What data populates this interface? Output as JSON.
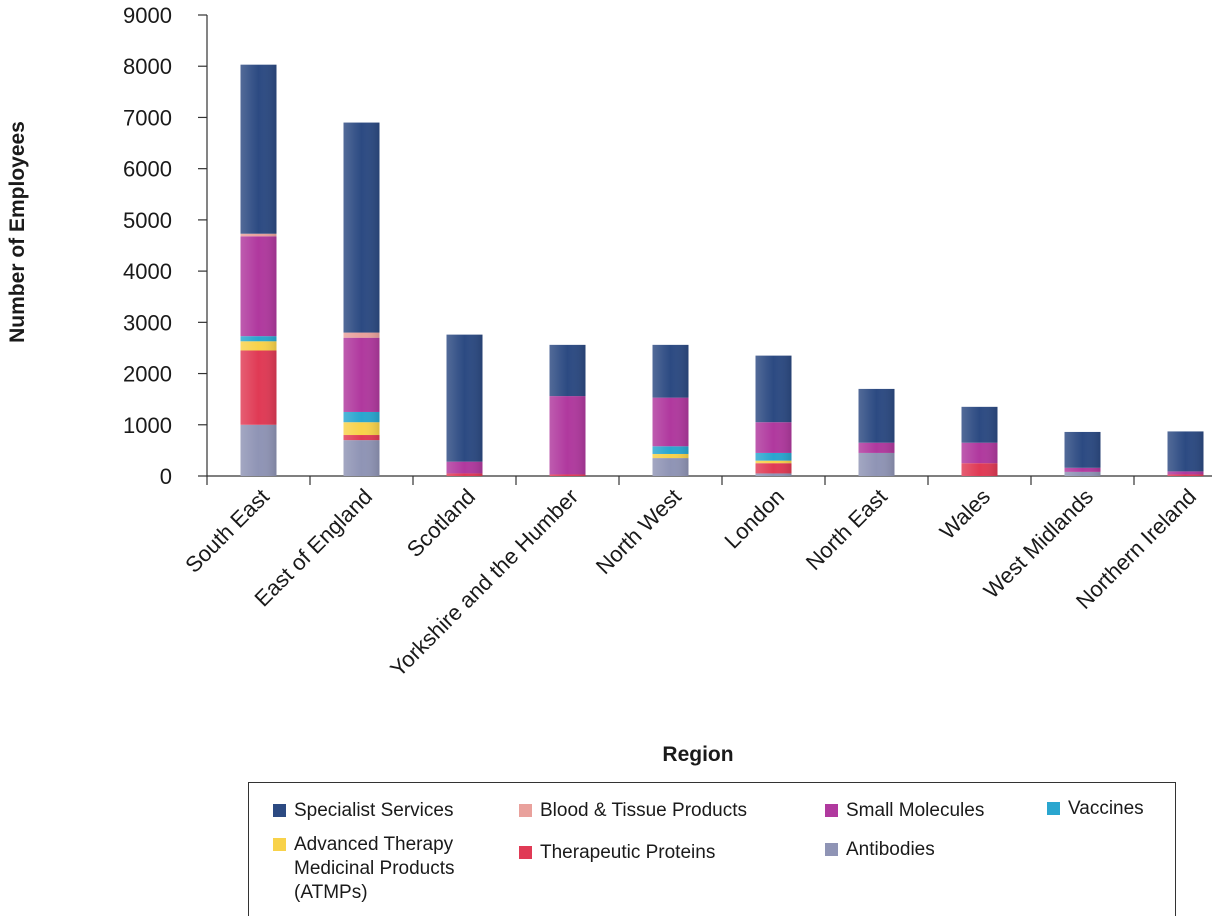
{
  "chart_data": {
    "type": "bar",
    "stacked": true,
    "xlabel": "Region",
    "ylabel": "Number of Employees",
    "ylim": [
      0,
      9000
    ],
    "yticks": [
      0,
      1000,
      2000,
      3000,
      4000,
      5000,
      6000,
      7000,
      8000,
      9000
    ],
    "grid": false,
    "legend_position": "bottom",
    "categories": [
      "South East",
      "East of England",
      "Scotland",
      "Yorkshire and the Humber",
      "North West",
      "London",
      "North East",
      "Wales",
      "West Midlands",
      "Northern Ireland"
    ],
    "series": [
      {
        "name": "Antibodies",
        "color": "#8f94b5",
        "values": [
          1000,
          700,
          0,
          0,
          350,
          50,
          450,
          0,
          80,
          0
        ]
      },
      {
        "name": "Therapeutic Proteins",
        "color": "#e03a55",
        "values": [
          1450,
          100,
          50,
          30,
          0,
          200,
          0,
          250,
          0,
          30
        ]
      },
      {
        "name": "Advanced Therapy Medicinal Products (ATMPs)",
        "color": "#f8d24a",
        "values": [
          180,
          250,
          0,
          0,
          80,
          50,
          0,
          0,
          0,
          0
        ]
      },
      {
        "name": "Vaccines",
        "color": "#2aa6cf",
        "values": [
          100,
          200,
          0,
          0,
          150,
          150,
          0,
          0,
          0,
          0
        ]
      },
      {
        "name": "Small Molecules",
        "color": "#b0399e",
        "values": [
          1950,
          1450,
          230,
          1530,
          950,
          600,
          200,
          400,
          80,
          60
        ]
      },
      {
        "name": "Blood & Tissue Products",
        "color": "#e9a19c",
        "values": [
          50,
          100,
          0,
          0,
          0,
          0,
          0,
          0,
          0,
          0
        ]
      },
      {
        "name": "Specialist Services",
        "color": "#2c4a82",
        "values": [
          3300,
          4100,
          2480,
          1000,
          1030,
          1300,
          1050,
          700,
          700,
          780
        ]
      }
    ]
  },
  "legend": {
    "items": [
      {
        "label": "Specialist Services",
        "color": "#2c4a82"
      },
      {
        "label": "Blood & Tissue Products",
        "color": "#e9a19c"
      },
      {
        "label": "Small Molecules",
        "color": "#b0399e"
      },
      {
        "label": "Vaccines",
        "color": "#2aa6cf"
      },
      {
        "label": "Advanced Therapy Medicinal Products (ATMPs)",
        "color": "#f8d24a"
      },
      {
        "label": "Therapeutic Proteins",
        "color": "#e03a55"
      },
      {
        "label": "Antibodies",
        "color": "#8f94b5"
      }
    ]
  }
}
